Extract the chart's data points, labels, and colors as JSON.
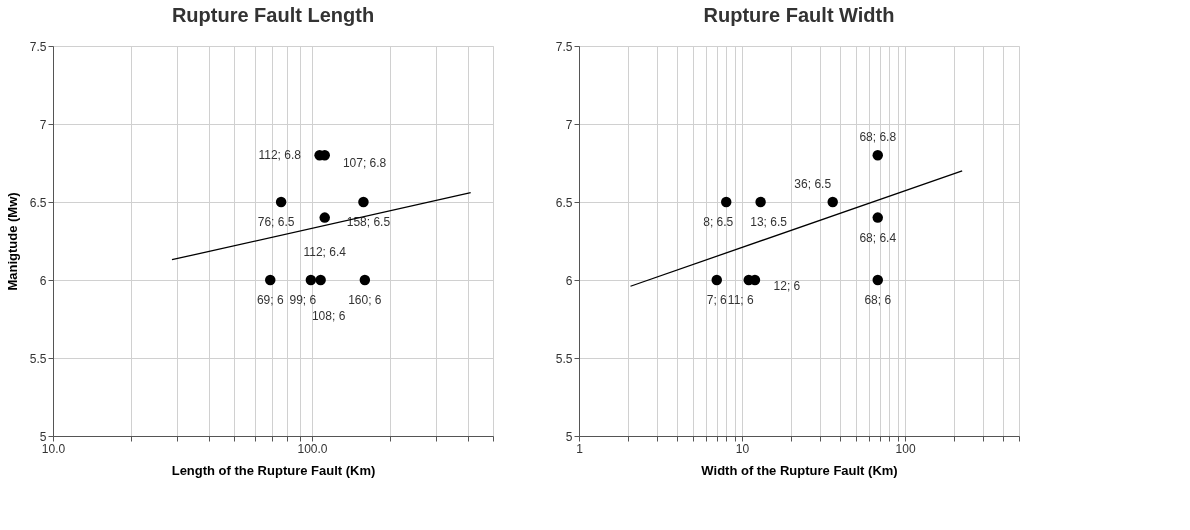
{
  "chart_data": [
    {
      "type": "scatter",
      "title": "Rupture Fault Length",
      "xlabel": "Length of the Rupture Fault  (Km)",
      "ylabel": "Manigtude (Mw)",
      "log": "x",
      "grid": true,
      "marker": "circle",
      "xlim": [
        10,
        500
      ],
      "xticks": [
        {
          "value": 10,
          "label": "10.0"
        },
        {
          "value": 20,
          "label": null
        },
        {
          "value": 30,
          "label": null
        },
        {
          "value": 40,
          "label": null
        },
        {
          "value": 50,
          "label": null
        },
        {
          "value": 60,
          "label": null
        },
        {
          "value": 70,
          "label": null
        },
        {
          "value": 80,
          "label": null
        },
        {
          "value": 90,
          "label": null
        },
        {
          "value": 100,
          "label": "100.0"
        },
        {
          "value": 200,
          "label": null
        },
        {
          "value": 300,
          "label": null
        },
        {
          "value": 400,
          "label": null
        },
        {
          "value": 500,
          "label": null
        }
      ],
      "ylim": [
        5,
        7.5
      ],
      "yticks": [
        5,
        5.5,
        6,
        6.5,
        7,
        7.5
      ],
      "series": [
        {
          "color": "#000000",
          "x": [
            112,
            107,
            76,
            158,
            112,
            69,
            99,
            108,
            160
          ],
          "values": [
            6.8,
            6.8,
            6.5,
            6.5,
            6.4,
            6,
            6,
            6,
            6
          ],
          "value_labels": [
            "112; 6.8",
            "107; 6.8",
            "76; 6.5",
            "158; 6.5",
            "112; 6.4",
            "69; 6",
            "99; 6",
            "108; 6",
            "160; 6"
          ]
        },
        {
          "type": "line",
          "marker": "none",
          "color": "#000000",
          "x": [
            28.8,
            410
          ],
          "values": [
            6.13,
            6.56
          ]
        }
      ]
    },
    {
      "type": "scatter",
      "title": "Rupture Fault Width",
      "xlabel": "Width of the Rupture Fault  (Km)",
      "log": "x",
      "grid": true,
      "marker": "circle",
      "xlim": [
        1,
        500
      ],
      "xticks": [
        1,
        {
          "value": 2,
          "label": null
        },
        {
          "value": 3,
          "label": null
        },
        {
          "value": 4,
          "label": null
        },
        {
          "value": 5,
          "label": null
        },
        {
          "value": 6,
          "label": null
        },
        {
          "value": 7,
          "label": null
        },
        {
          "value": 8,
          "label": null
        },
        {
          "value": 9,
          "label": null
        },
        10,
        {
          "value": 20,
          "label": null
        },
        {
          "value": 30,
          "label": null
        },
        {
          "value": 40,
          "label": null
        },
        {
          "value": 50,
          "label": null
        },
        {
          "value": 60,
          "label": null
        },
        {
          "value": 70,
          "label": null
        },
        {
          "value": 80,
          "label": null
        },
        {
          "value": 90,
          "label": null
        },
        100,
        {
          "value": 200,
          "label": null
        },
        {
          "value": 300,
          "label": null
        },
        {
          "value": 400,
          "label": null
        },
        {
          "value": 500,
          "label": null
        }
      ],
      "ylim": [
        5,
        7.5
      ],
      "yticks": [
        5,
        5.5,
        6,
        6.5,
        7,
        7.5
      ],
      "series": [
        {
          "color": "#000000",
          "x": [
            8,
            13,
            36,
            68,
            68,
            7,
            11,
            12,
            68
          ],
          "values": [
            6.5,
            6.5,
            6.5,
            6.8,
            6.4,
            6,
            6,
            6,
            6
          ],
          "value_labels": [
            "8; 6.5",
            "13; 6.5",
            "36; 6.5",
            "68; 6.8",
            "68; 6.4",
            "7; 6",
            "11; 6",
            "12; 6",
            "68; 6"
          ]
        },
        {
          "type": "line",
          "marker": "none",
          "color": "#000000",
          "x": [
            2.07,
            224
          ],
          "values": [
            5.96,
            6.7
          ]
        }
      ]
    }
  ]
}
